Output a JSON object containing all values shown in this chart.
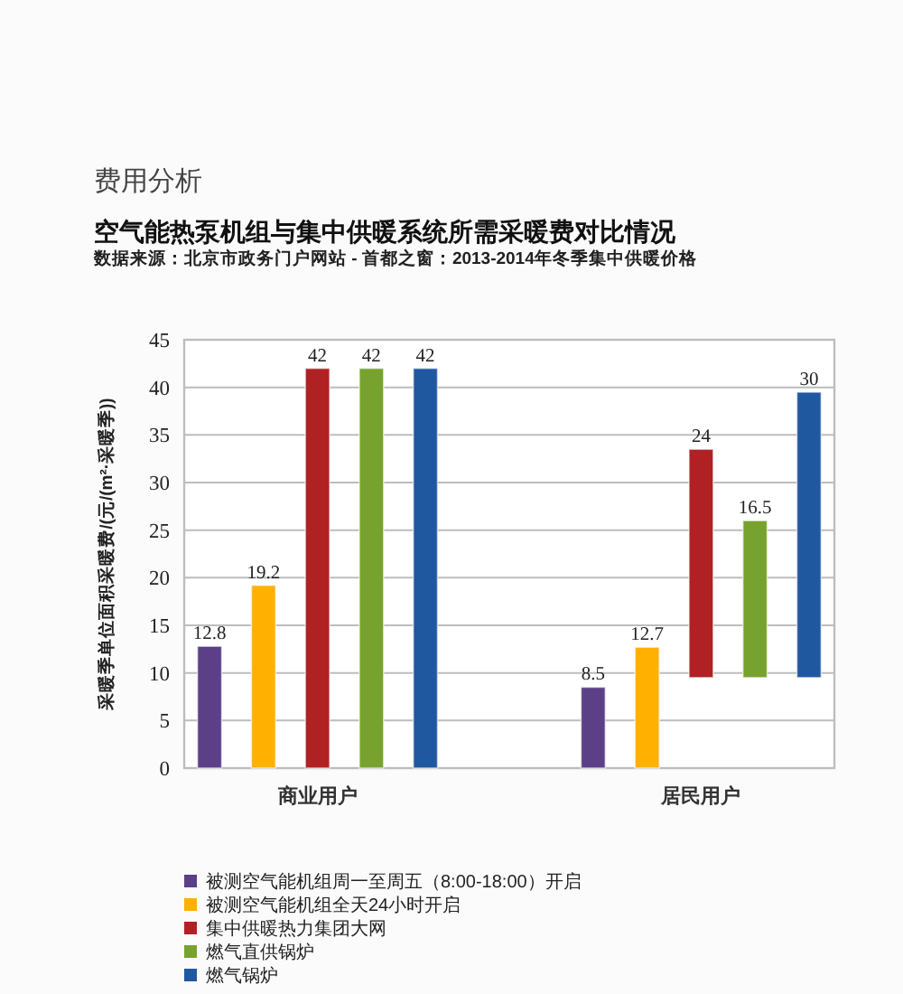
{
  "chart_data": {
    "type": "bar",
    "title": "空气能热泵机组与集中供暖系统所需采暖费对比情况",
    "subtitle": "数据来源：北京市政务门户网站 - 首都之窗：2013-2014年冬季集中供暖价格",
    "annotations": [
      "费用分析"
    ],
    "ylabel": "采暖季单位面积采暖费/(元/(m²·采暖季))",
    "categories": [
      "商业用户",
      "居民用户"
    ],
    "series": [
      {
        "name": "被测空气能机组周一至周五（8:00-18:00）开启",
        "color": "#5b3f87",
        "values": [
          12.8,
          8.5
        ]
      },
      {
        "name": "被测空气能机组全天24小时开启",
        "color": "#ffb000",
        "values": [
          19.2,
          12.7
        ]
      },
      {
        "name": "集中供暖热力集团大网",
        "color": "#b02124",
        "values": [
          42,
          24
        ],
        "base": [
          0,
          9.5
        ]
      },
      {
        "name": "燃气直供锅炉",
        "color": "#78a22f",
        "values": [
          42,
          16.5
        ],
        "base": [
          0,
          9.5
        ]
      },
      {
        "name": "燃气锅炉",
        "color": "#2058a0",
        "values": [
          42,
          30
        ],
        "base": [
          0,
          9.5
        ]
      }
    ],
    "ylim": [
      0,
      45
    ],
    "yticks": [
      0,
      5,
      10,
      15,
      20,
      25,
      30,
      35,
      40,
      45
    ],
    "grid": "y",
    "legend": "bottom",
    "data_labels": true
  }
}
